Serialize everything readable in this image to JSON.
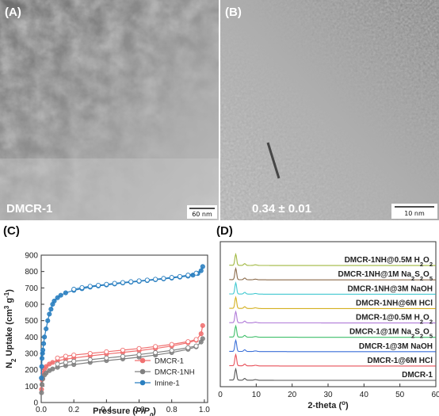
{
  "tem_panels": [
    {
      "label": "(A)",
      "caption": "DMCR-1",
      "scale_bar": "60 nm"
    },
    {
      "label": "(B)",
      "caption": "0.34 ± 0.01",
      "scale_bar": "10 nm"
    }
  ],
  "chart_data": [
    {
      "type": "line",
      "panel_label": "(C)",
      "xlabel_main": "Pressure (",
      "xlabel_italic": "P/P",
      "xlabel_sub": "0",
      "xlabel_close": ")",
      "ylabel_main": "N",
      "ylabel_sub": "2",
      "ylabel_rest": " Uptake (cm",
      "ylabel_sup1": "3",
      "ylabel_mid": " g",
      "ylabel_sup2": "-1",
      "ylabel_close": ")",
      "xlim": [
        0,
        1.02
      ],
      "ylim": [
        0,
        900
      ],
      "xticks": [
        "0.0",
        "0.2",
        "0.4",
        "0.6",
        "0.8",
        "1.0"
      ],
      "xtick_values": [
        0,
        0.2,
        0.4,
        0.6,
        0.8,
        1.0
      ],
      "yticks": [
        "0",
        "100",
        "200",
        "300",
        "400",
        "500",
        "600",
        "700",
        "800",
        "900"
      ],
      "ytick_values": [
        0,
        100,
        200,
        300,
        400,
        500,
        600,
        700,
        800,
        900
      ],
      "legend_position": "lower-right",
      "series": [
        {
          "name": "DMCR-1",
          "color": "#f07070",
          "adsorption": {
            "x": [
              0.002,
              0.005,
              0.01,
              0.02,
              0.03,
              0.05,
              0.07,
              0.1,
              0.15,
              0.2,
              0.3,
              0.4,
              0.5,
              0.6,
              0.7,
              0.8,
              0.9,
              0.95,
              0.98,
              0.99
            ],
            "y": [
              80,
              140,
              180,
              205,
              220,
              235,
              245,
              255,
              265,
              272,
              285,
              296,
              306,
              317,
              330,
              345,
              365,
              380,
              420,
              470
            ]
          },
          "desorption": {
            "x": [
              0.95,
              0.9,
              0.8,
              0.7,
              0.6,
              0.5,
              0.4,
              0.3,
              0.2,
              0.15,
              0.1
            ],
            "y": [
              385,
              372,
              355,
              342,
              330,
              320,
              310,
              300,
              290,
              283,
              272
            ]
          }
        },
        {
          "name": "DMCR-1NH",
          "color": "#808080",
          "adsorption": {
            "x": [
              0.002,
              0.005,
              0.01,
              0.02,
              0.03,
              0.05,
              0.07,
              0.1,
              0.15,
              0.2,
              0.3,
              0.4,
              0.5,
              0.6,
              0.7,
              0.8,
              0.9,
              0.95,
              0.98,
              0.99
            ],
            "y": [
              60,
              110,
              145,
              168,
              180,
              195,
              205,
              215,
              225,
              232,
              245,
              256,
              266,
              277,
              290,
              305,
              325,
              340,
              370,
              390
            ]
          },
          "desorption": {
            "x": [
              0.95,
              0.9,
              0.8,
              0.7,
              0.6,
              0.5,
              0.4,
              0.3,
              0.2,
              0.15,
              0.1
            ],
            "y": [
              345,
              335,
              318,
              305,
              293,
              282,
              272,
              262,
              252,
              245,
              235
            ]
          }
        },
        {
          "name": "Imine-1",
          "color": "#2a7fc0",
          "adsorption": {
            "x": [
              0.001,
              0.003,
              0.005,
              0.008,
              0.01,
              0.015,
              0.02,
              0.03,
              0.04,
              0.05,
              0.06,
              0.07,
              0.08,
              0.1,
              0.12,
              0.15,
              0.2,
              0.25,
              0.3,
              0.35,
              0.4,
              0.45,
              0.5,
              0.55,
              0.6,
              0.65,
              0.7,
              0.75,
              0.8,
              0.85,
              0.9,
              0.93,
              0.96,
              0.98,
              0.99
            ],
            "y": [
              150,
              220,
              270,
              300,
              320,
              360,
              400,
              450,
              500,
              540,
              570,
              600,
              620,
              640,
              655,
              670,
              685,
              695,
              705,
              712,
              718,
              724,
              730,
              735,
              740,
              745,
              750,
              755,
              760,
              766,
              772,
              778,
              788,
              805,
              830
            ]
          },
          "desorption": {
            "x": [
              0.95,
              0.9,
              0.85,
              0.8,
              0.75,
              0.7,
              0.65,
              0.6,
              0.55,
              0.5,
              0.45,
              0.4,
              0.35,
              0.3,
              0.25,
              0.2
            ],
            "y": [
              790,
              778,
              770,
              764,
              758,
              753,
              748,
              743,
              738,
              733,
              728,
              722,
              716,
              710,
              702,
              692
            ]
          }
        }
      ]
    },
    {
      "type": "line",
      "panel_label": "(D)",
      "xlabel_main": "2-theta (",
      "xlabel_sup": "o",
      "xlabel_close": ")",
      "xlim": [
        0,
        60
      ],
      "xticks": [
        "0",
        "10",
        "20",
        "30",
        "40",
        "50",
        "60"
      ],
      "xtick_values": [
        0,
        10,
        20,
        30,
        40,
        50,
        60
      ],
      "series": [
        {
          "label_main": "DMCR-1",
          "label_sub": "",
          "label_tail": "",
          "color": "#555555"
        },
        {
          "label_main": "DMCR-1@6M HCl",
          "label_sub": "",
          "label_tail": "",
          "color": "#e8505a"
        },
        {
          "label_main": "DMCR-1@3M NaOH",
          "label_sub": "",
          "label_tail": "",
          "color": "#3a6fd8"
        },
        {
          "label_main": "DMCR-1@1M Na",
          "label_sub": "2",
          "label_mid": "S",
          "label_sub2": "2",
          "label_tail": "O",
          "label_sub3": "5",
          "color": "#3fbf6a"
        },
        {
          "label_main": "DMCR-1@0.5M H",
          "label_sub": "2",
          "label_tail": "O",
          "label_sub3": "2",
          "color": "#b07ad8"
        },
        {
          "label_main": "DMCR-1NH@6M HCl",
          "label_sub": "",
          "label_tail": "",
          "color": "#d4b020"
        },
        {
          "label_main": "DMCR-1NH@3M NaOH",
          "label_sub": "",
          "label_tail": "",
          "color": "#40c8d0"
        },
        {
          "label_main": "DMCR-1NH@1M Na",
          "label_sub": "2",
          "label_mid": "S",
          "label_sub2": "2",
          "label_tail": "O",
          "label_sub3": "5",
          "color": "#8a6a4a"
        },
        {
          "label_main": "DMCR-1NH@0.5M H",
          "label_sub": "2",
          "label_tail": "O",
          "label_sub3": "2",
          "color": "#a0b840"
        }
      ],
      "peaks_2theta": [
        4.3,
        6.8
      ]
    }
  ]
}
